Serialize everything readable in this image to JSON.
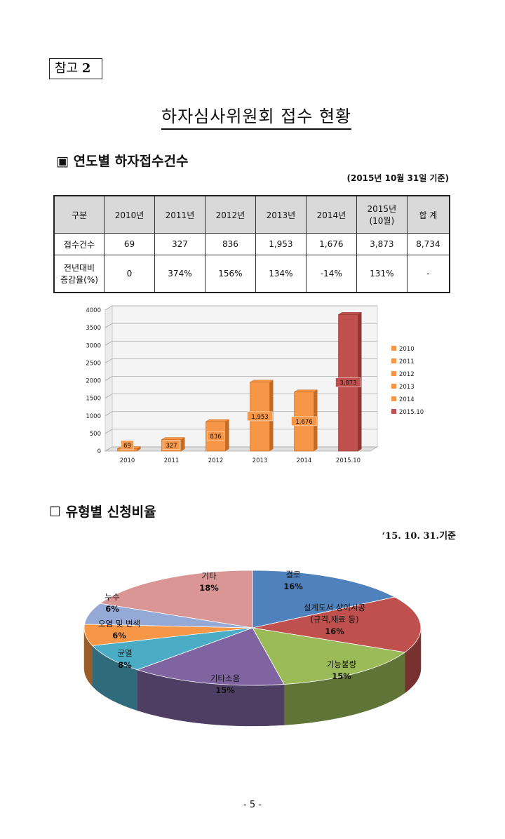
{
  "ref_label": "참고",
  "ref_number": "2",
  "title": "하자심사위원회 접수 현황",
  "section1": {
    "bullet": "▣",
    "heading": "연도별 하자접수건수",
    "note": "(2015년 10월 31일 기준)"
  },
  "table": {
    "headers": [
      "구분",
      "2010년",
      "2011년",
      "2012년",
      "2013년",
      "2014년",
      "2015년\n(10월)",
      "합 계"
    ],
    "rows": [
      [
        "접수건수",
        "69",
        "327",
        "836",
        "1,953",
        "1,676",
        "3,873",
        "8,734"
      ],
      [
        "전년대비\n증감율(%)",
        "0",
        "374%",
        "156%",
        "134%",
        "-14%",
        "131%",
        "-"
      ]
    ]
  },
  "chart_data": [
    {
      "type": "bar",
      "categories": [
        "2010",
        "2011",
        "2012",
        "2013",
        "2014",
        "2015.10"
      ],
      "values": [
        69,
        327,
        836,
        1953,
        1676,
        3873
      ],
      "data_labels": [
        "69",
        "327",
        "836",
        "1,953",
        "1,676",
        "3,873"
      ],
      "ylim": [
        0,
        4000
      ],
      "yticks": [
        "0",
        "500",
        "1000",
        "1500",
        "2000",
        "2500",
        "3000",
        "3500",
        "4000"
      ],
      "legend": [
        "2010",
        "2011",
        "2012",
        "2013",
        "2014",
        "2015.10"
      ],
      "legend_position": "right",
      "grid": true,
      "colors": {
        "bar": "#f79646",
        "last_bar": "#c0504d"
      }
    },
    {
      "type": "pie",
      "labels": [
        "결로",
        "설계도서 상이시공\n(규격,재료 등)",
        "기능불량",
        "기타소음",
        "균열",
        "오염 및 변색",
        "누수",
        "기타"
      ],
      "values": [
        16,
        16,
        15,
        15,
        8,
        6,
        6,
        18
      ],
      "value_labels": [
        "16%",
        "16%",
        "15%",
        "15%",
        "8%",
        "6%",
        "6%",
        "18%"
      ],
      "colors": [
        "#4f81bd",
        "#c0504d",
        "#9bbb59",
        "#8064a2",
        "#4bacc6",
        "#f79646",
        "#95a9d7",
        "#d99694"
      ]
    }
  ],
  "section2": {
    "bullet": "☐",
    "heading": "유형별 신청비율",
    "note": "‘15. 10. 31.기준"
  },
  "page_number": "- 5 -"
}
